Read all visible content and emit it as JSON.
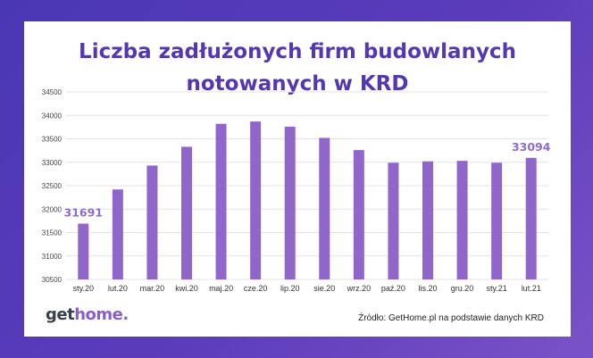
{
  "logo": {
    "part1": "get",
    "part2": "home",
    "part3": "."
  },
  "source": "Źródło: GetHome.pl na podstawie danych KRD",
  "chart_data": {
    "type": "bar",
    "title_lines": [
      "Liczba zadłużonych firm budowlanych",
      "notowanych w KRD"
    ],
    "categories": [
      "sty.20",
      "lut.20",
      "mar.20",
      "kwi.20",
      "maj.20",
      "cze.20",
      "lip.20",
      "sie.20",
      "wrz.20",
      "paź.20",
      "lis.20",
      "gru.20",
      "sty.21",
      "lut.21"
    ],
    "values": [
      31691,
      32420,
      32930,
      33330,
      33820,
      33870,
      33760,
      33520,
      33260,
      32990,
      33020,
      33030,
      32990,
      33094
    ],
    "data_labels": {
      "0": "31691",
      "13": "33094"
    },
    "ylim": [
      30500,
      34500
    ],
    "yticks": [
      30500,
      31000,
      31500,
      32000,
      32500,
      33000,
      33500,
      34000,
      34500
    ],
    "grid": true,
    "bar_color": "#9166cb",
    "label_color": "#8d6ccb",
    "grid_color": "#e3e3e3"
  }
}
